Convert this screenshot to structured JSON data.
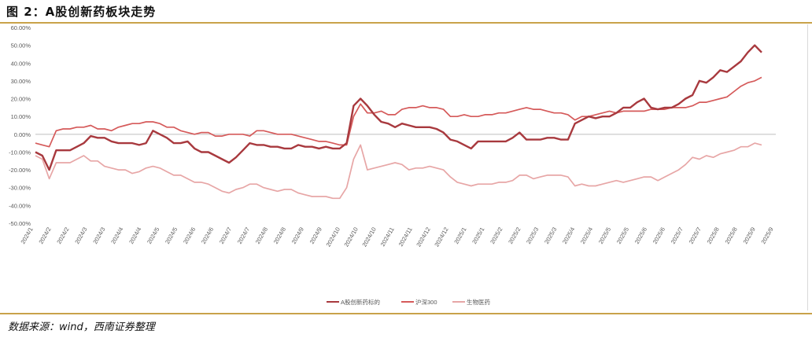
{
  "figure": {
    "title": "图 2：A股创新药板块走势",
    "source": "数据来源：wind，西南证券整理"
  },
  "chart_data": {
    "type": "line",
    "title": "",
    "xlabel": "",
    "ylabel": "",
    "ylim": [
      -0.5,
      0.6
    ],
    "yticks": [
      "60.00%",
      "50.00%",
      "40.00%",
      "30.00%",
      "20.00%",
      "10.00%",
      "0.00%",
      "-10.00%",
      "-20.00%",
      "-30.00%",
      "-40.00%",
      "-50.00%"
    ],
    "ytick_values": [
      0.6,
      0.5,
      0.4,
      0.3,
      0.2,
      0.1,
      0.0,
      -0.1,
      -0.2,
      -0.3,
      -0.4,
      -0.5
    ],
    "xticks": [
      "2024/1",
      "2024/2",
      "2024/2",
      "2024/3",
      "2024/3",
      "2024/4",
      "2024/4",
      "2024/5",
      "2024/5",
      "2024/6",
      "2024/6",
      "2024/7",
      "2024/7",
      "2024/8",
      "2024/8",
      "2024/9",
      "2024/9",
      "2024/10",
      "2024/10",
      "2024/10",
      "2024/11",
      "2024/11",
      "2024/12",
      "2024/12",
      "2025/1",
      "2025/1",
      "2025/2",
      "2025/2",
      "2025/3",
      "2025/3",
      "2025/4",
      "2025/4",
      "2025/5",
      "2025/5",
      "2025/6",
      "2025/6",
      "2025/7",
      "2025/7",
      "2025/8",
      "2025/8",
      "2025/9",
      "2025/9"
    ],
    "grid": false,
    "legend_position": "bottom",
    "series": [
      {
        "name": "A股创新药标的",
        "color": "#a8393e",
        "width": 2.4,
        "values": [
          -0.1,
          -0.12,
          -0.2,
          -0.09,
          -0.09,
          -0.09,
          -0.07,
          -0.05,
          -0.01,
          -0.02,
          -0.02,
          -0.04,
          -0.05,
          -0.05,
          -0.05,
          -0.06,
          -0.05,
          0.02,
          0.0,
          -0.02,
          -0.05,
          -0.05,
          -0.04,
          -0.08,
          -0.1,
          -0.1,
          -0.12,
          -0.14,
          -0.16,
          -0.13,
          -0.09,
          -0.05,
          -0.06,
          -0.06,
          -0.07,
          -0.07,
          -0.08,
          -0.08,
          -0.06,
          -0.07,
          -0.07,
          -0.08,
          -0.07,
          -0.08,
          -0.08,
          -0.05,
          0.16,
          0.2,
          0.16,
          0.11,
          0.07,
          0.06,
          0.04,
          0.06,
          0.05,
          0.04,
          0.04,
          0.04,
          0.03,
          0.01,
          -0.03,
          -0.04,
          -0.06,
          -0.08,
          -0.04,
          -0.04,
          -0.04,
          -0.04,
          -0.04,
          -0.02,
          0.01,
          -0.03,
          -0.03,
          -0.03,
          -0.02,
          -0.02,
          -0.03,
          -0.03,
          0.06,
          0.08,
          0.1,
          0.09,
          0.1,
          0.1,
          0.12,
          0.15,
          0.15,
          0.18,
          0.2,
          0.15,
          0.14,
          0.15,
          0.15,
          0.17,
          0.2,
          0.22,
          0.3,
          0.29,
          0.32,
          0.36,
          0.35,
          0.38,
          0.41,
          0.46,
          0.5,
          0.46
        ]
      },
      {
        "name": "沪深300",
        "color": "#d55a5a",
        "width": 1.7,
        "values": [
          -0.05,
          -0.06,
          -0.07,
          0.02,
          0.03,
          0.03,
          0.04,
          0.04,
          0.05,
          0.03,
          0.03,
          0.02,
          0.04,
          0.05,
          0.06,
          0.06,
          0.07,
          0.07,
          0.06,
          0.04,
          0.04,
          0.02,
          0.01,
          0.0,
          0.01,
          0.01,
          -0.01,
          -0.01,
          0.0,
          0.0,
          0.0,
          -0.01,
          0.02,
          0.02,
          0.01,
          0.0,
          0.0,
          0.0,
          -0.01,
          -0.02,
          -0.03,
          -0.04,
          -0.04,
          -0.05,
          -0.06,
          -0.06,
          0.1,
          0.17,
          0.12,
          0.12,
          0.13,
          0.11,
          0.11,
          0.14,
          0.15,
          0.15,
          0.16,
          0.15,
          0.15,
          0.14,
          0.1,
          0.1,
          0.11,
          0.1,
          0.1,
          0.11,
          0.11,
          0.12,
          0.12,
          0.13,
          0.14,
          0.15,
          0.14,
          0.14,
          0.13,
          0.12,
          0.12,
          0.11,
          0.08,
          0.1,
          0.1,
          0.11,
          0.12,
          0.13,
          0.12,
          0.13,
          0.13,
          0.13,
          0.13,
          0.14,
          0.14,
          0.14,
          0.15,
          0.15,
          0.15,
          0.16,
          0.18,
          0.18,
          0.19,
          0.2,
          0.21,
          0.24,
          0.27,
          0.29,
          0.3,
          0.32
        ]
      },
      {
        "name": "生物医药",
        "color": "#e7a6a6",
        "width": 1.7,
        "values": [
          -0.12,
          -0.14,
          -0.25,
          -0.16,
          -0.16,
          -0.16,
          -0.14,
          -0.12,
          -0.15,
          -0.15,
          -0.18,
          -0.19,
          -0.2,
          -0.2,
          -0.22,
          -0.21,
          -0.19,
          -0.18,
          -0.19,
          -0.21,
          -0.23,
          -0.23,
          -0.25,
          -0.27,
          -0.27,
          -0.28,
          -0.3,
          -0.32,
          -0.33,
          -0.31,
          -0.3,
          -0.28,
          -0.28,
          -0.3,
          -0.31,
          -0.32,
          -0.31,
          -0.31,
          -0.33,
          -0.34,
          -0.35,
          -0.35,
          -0.35,
          -0.36,
          -0.36,
          -0.3,
          -0.14,
          -0.06,
          -0.2,
          -0.19,
          -0.18,
          -0.17,
          -0.16,
          -0.17,
          -0.2,
          -0.19,
          -0.19,
          -0.18,
          -0.19,
          -0.2,
          -0.24,
          -0.27,
          -0.28,
          -0.29,
          -0.28,
          -0.28,
          -0.28,
          -0.27,
          -0.27,
          -0.26,
          -0.23,
          -0.23,
          -0.25,
          -0.24,
          -0.23,
          -0.23,
          -0.23,
          -0.24,
          -0.29,
          -0.28,
          -0.29,
          -0.29,
          -0.28,
          -0.27,
          -0.26,
          -0.27,
          -0.26,
          -0.25,
          -0.24,
          -0.24,
          -0.26,
          -0.24,
          -0.22,
          -0.2,
          -0.17,
          -0.13,
          -0.14,
          -0.12,
          -0.13,
          -0.11,
          -0.1,
          -0.09,
          -0.07,
          -0.07,
          -0.05,
          -0.06
        ]
      }
    ]
  }
}
